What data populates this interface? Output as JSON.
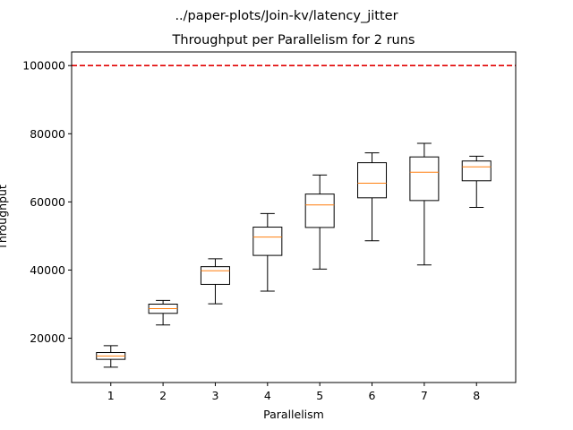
{
  "figure": {
    "suptitle": "../paper-plots/Join-kv/latency_jitter"
  },
  "chart_data": {
    "type": "box",
    "title": "Throughput per Parallelism for 2 runs",
    "xlabel": "Parallelism",
    "ylabel": "Throughput",
    "categories": [
      "1",
      "2",
      "3",
      "4",
      "5",
      "6",
      "7",
      "8"
    ],
    "ylim": [
      7000,
      104000
    ],
    "yticks": [
      20000,
      40000,
      60000,
      80000,
      100000
    ],
    "ytick_labels": [
      "20000",
      "40000",
      "60000",
      "80000",
      "100000"
    ],
    "boxes": [
      {
        "x": "1",
        "whisker_low": 11500,
        "q1": 13800,
        "median": 14800,
        "q3": 15800,
        "whisker_high": 17800
      },
      {
        "x": "2",
        "whisker_low": 23900,
        "q1": 27300,
        "median": 28700,
        "q3": 30000,
        "whisker_high": 31100
      },
      {
        "x": "3",
        "whisker_low": 30100,
        "q1": 35800,
        "median": 39800,
        "q3": 41000,
        "whisker_high": 43300
      },
      {
        "x": "4",
        "whisker_low": 33800,
        "q1": 44300,
        "median": 49700,
        "q3": 52600,
        "whisker_high": 56600
      },
      {
        "x": "5",
        "whisker_low": 40300,
        "q1": 52500,
        "median": 59100,
        "q3": 62300,
        "whisker_high": 67900
      },
      {
        "x": "6",
        "whisker_low": 48600,
        "q1": 61200,
        "median": 65500,
        "q3": 71500,
        "whisker_high": 74400
      },
      {
        "x": "7",
        "whisker_low": 41500,
        "q1": 60400,
        "median": 68700,
        "q3": 73200,
        "whisker_high": 77200
      },
      {
        "x": "8",
        "whisker_low": 58400,
        "q1": 66200,
        "median": 70300,
        "q3": 72000,
        "whisker_high": 73400
      }
    ],
    "reference_line": {
      "y": 100000,
      "color": "#e00000",
      "style": "dashed"
    },
    "colors": {
      "box": "#000000",
      "median": "#ff7f0e"
    },
    "grid": false,
    "legend": "none"
  }
}
